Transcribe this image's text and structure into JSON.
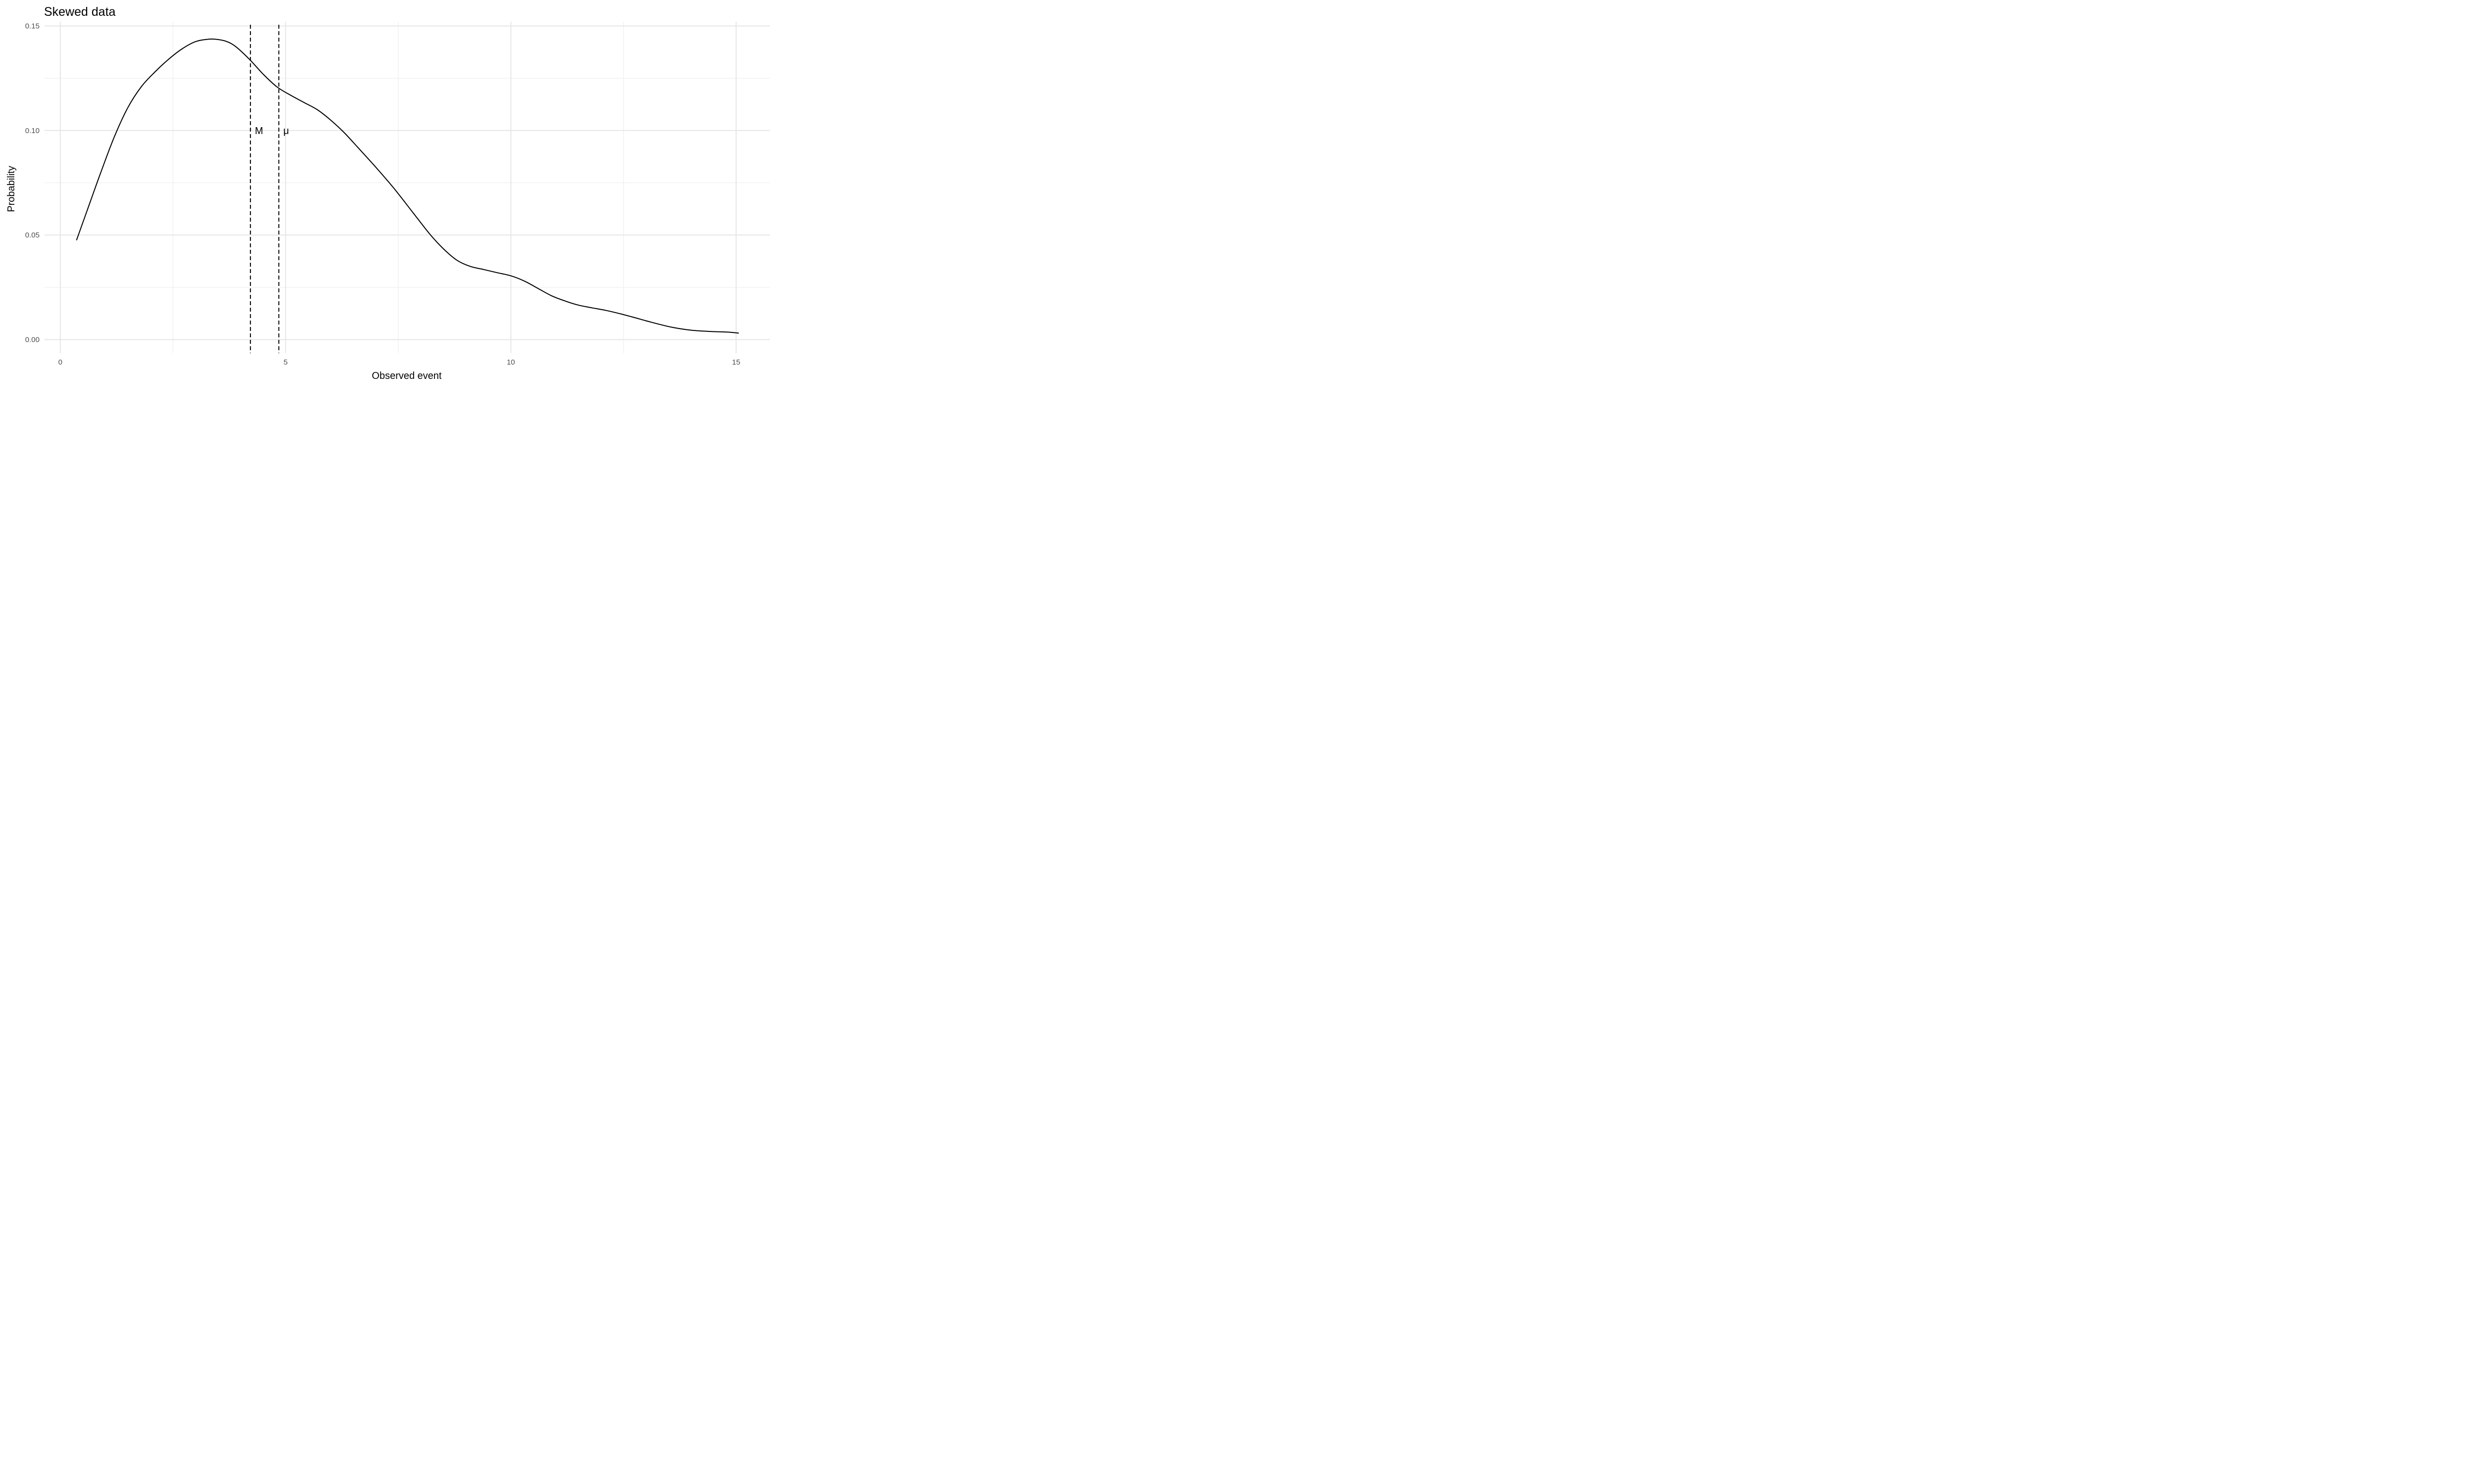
{
  "chart_data": {
    "type": "line",
    "title": "Skewed data",
    "xlabel": "Observed event",
    "ylabel": "Probability",
    "xlim": [
      -0.35,
      15.75
    ],
    "ylim": [
      -0.0065,
      0.152
    ],
    "x_ticks": [
      0,
      5,
      10,
      15
    ],
    "x_tick_labels": [
      "0",
      "5",
      "10",
      "15"
    ],
    "x_minor_ticks": [
      2.5,
      7.5,
      12.5
    ],
    "y_ticks": [
      0,
      0.05,
      0.1,
      0.15
    ],
    "y_tick_labels": [
      "0.00",
      "0.05",
      "0.10",
      "0.15"
    ],
    "y_minor_ticks": [
      0.025,
      0.075,
      0.125
    ],
    "grid": true,
    "series": [
      {
        "x": [
          0.36,
          0.6,
          0.9,
          1.2,
          1.5,
          1.8,
          2.1,
          2.4,
          2.7,
          3.0,
          3.3,
          3.5,
          3.7,
          3.9,
          4.2,
          4.5,
          4.8,
          5.1,
          5.4,
          5.7,
          6.0,
          6.3,
          6.6,
          7.0,
          7.4,
          7.8,
          8.2,
          8.5,
          8.8,
          9.1,
          9.4,
          9.7,
          10.0,
          10.3,
          10.6,
          10.9,
          11.2,
          11.5,
          11.8,
          12.1,
          12.4,
          12.7,
          13.0,
          13.3,
          13.6,
          14.0,
          14.4,
          14.8,
          15.06
        ],
        "y": [
          0.0475,
          0.062,
          0.08,
          0.097,
          0.111,
          0.121,
          0.128,
          0.134,
          0.139,
          0.1425,
          0.1437,
          0.1435,
          0.1425,
          0.14,
          0.134,
          0.127,
          0.121,
          0.117,
          0.1135,
          0.11,
          0.105,
          0.099,
          0.092,
          0.0825,
          0.0725,
          0.0615,
          0.0505,
          0.0435,
          0.038,
          0.035,
          0.0335,
          0.032,
          0.0305,
          0.028,
          0.0245,
          0.021,
          0.0185,
          0.0165,
          0.0152,
          0.014,
          0.0125,
          0.0108,
          0.009,
          0.0073,
          0.0058,
          0.0045,
          0.0039,
          0.0036,
          0.0031
        ]
      }
    ],
    "reference_lines": [
      {
        "label": "M",
        "x": 4.22,
        "label_y": 0.1
      },
      {
        "label": "μ",
        "x": 4.85,
        "label_y": 0.1
      }
    ]
  }
}
